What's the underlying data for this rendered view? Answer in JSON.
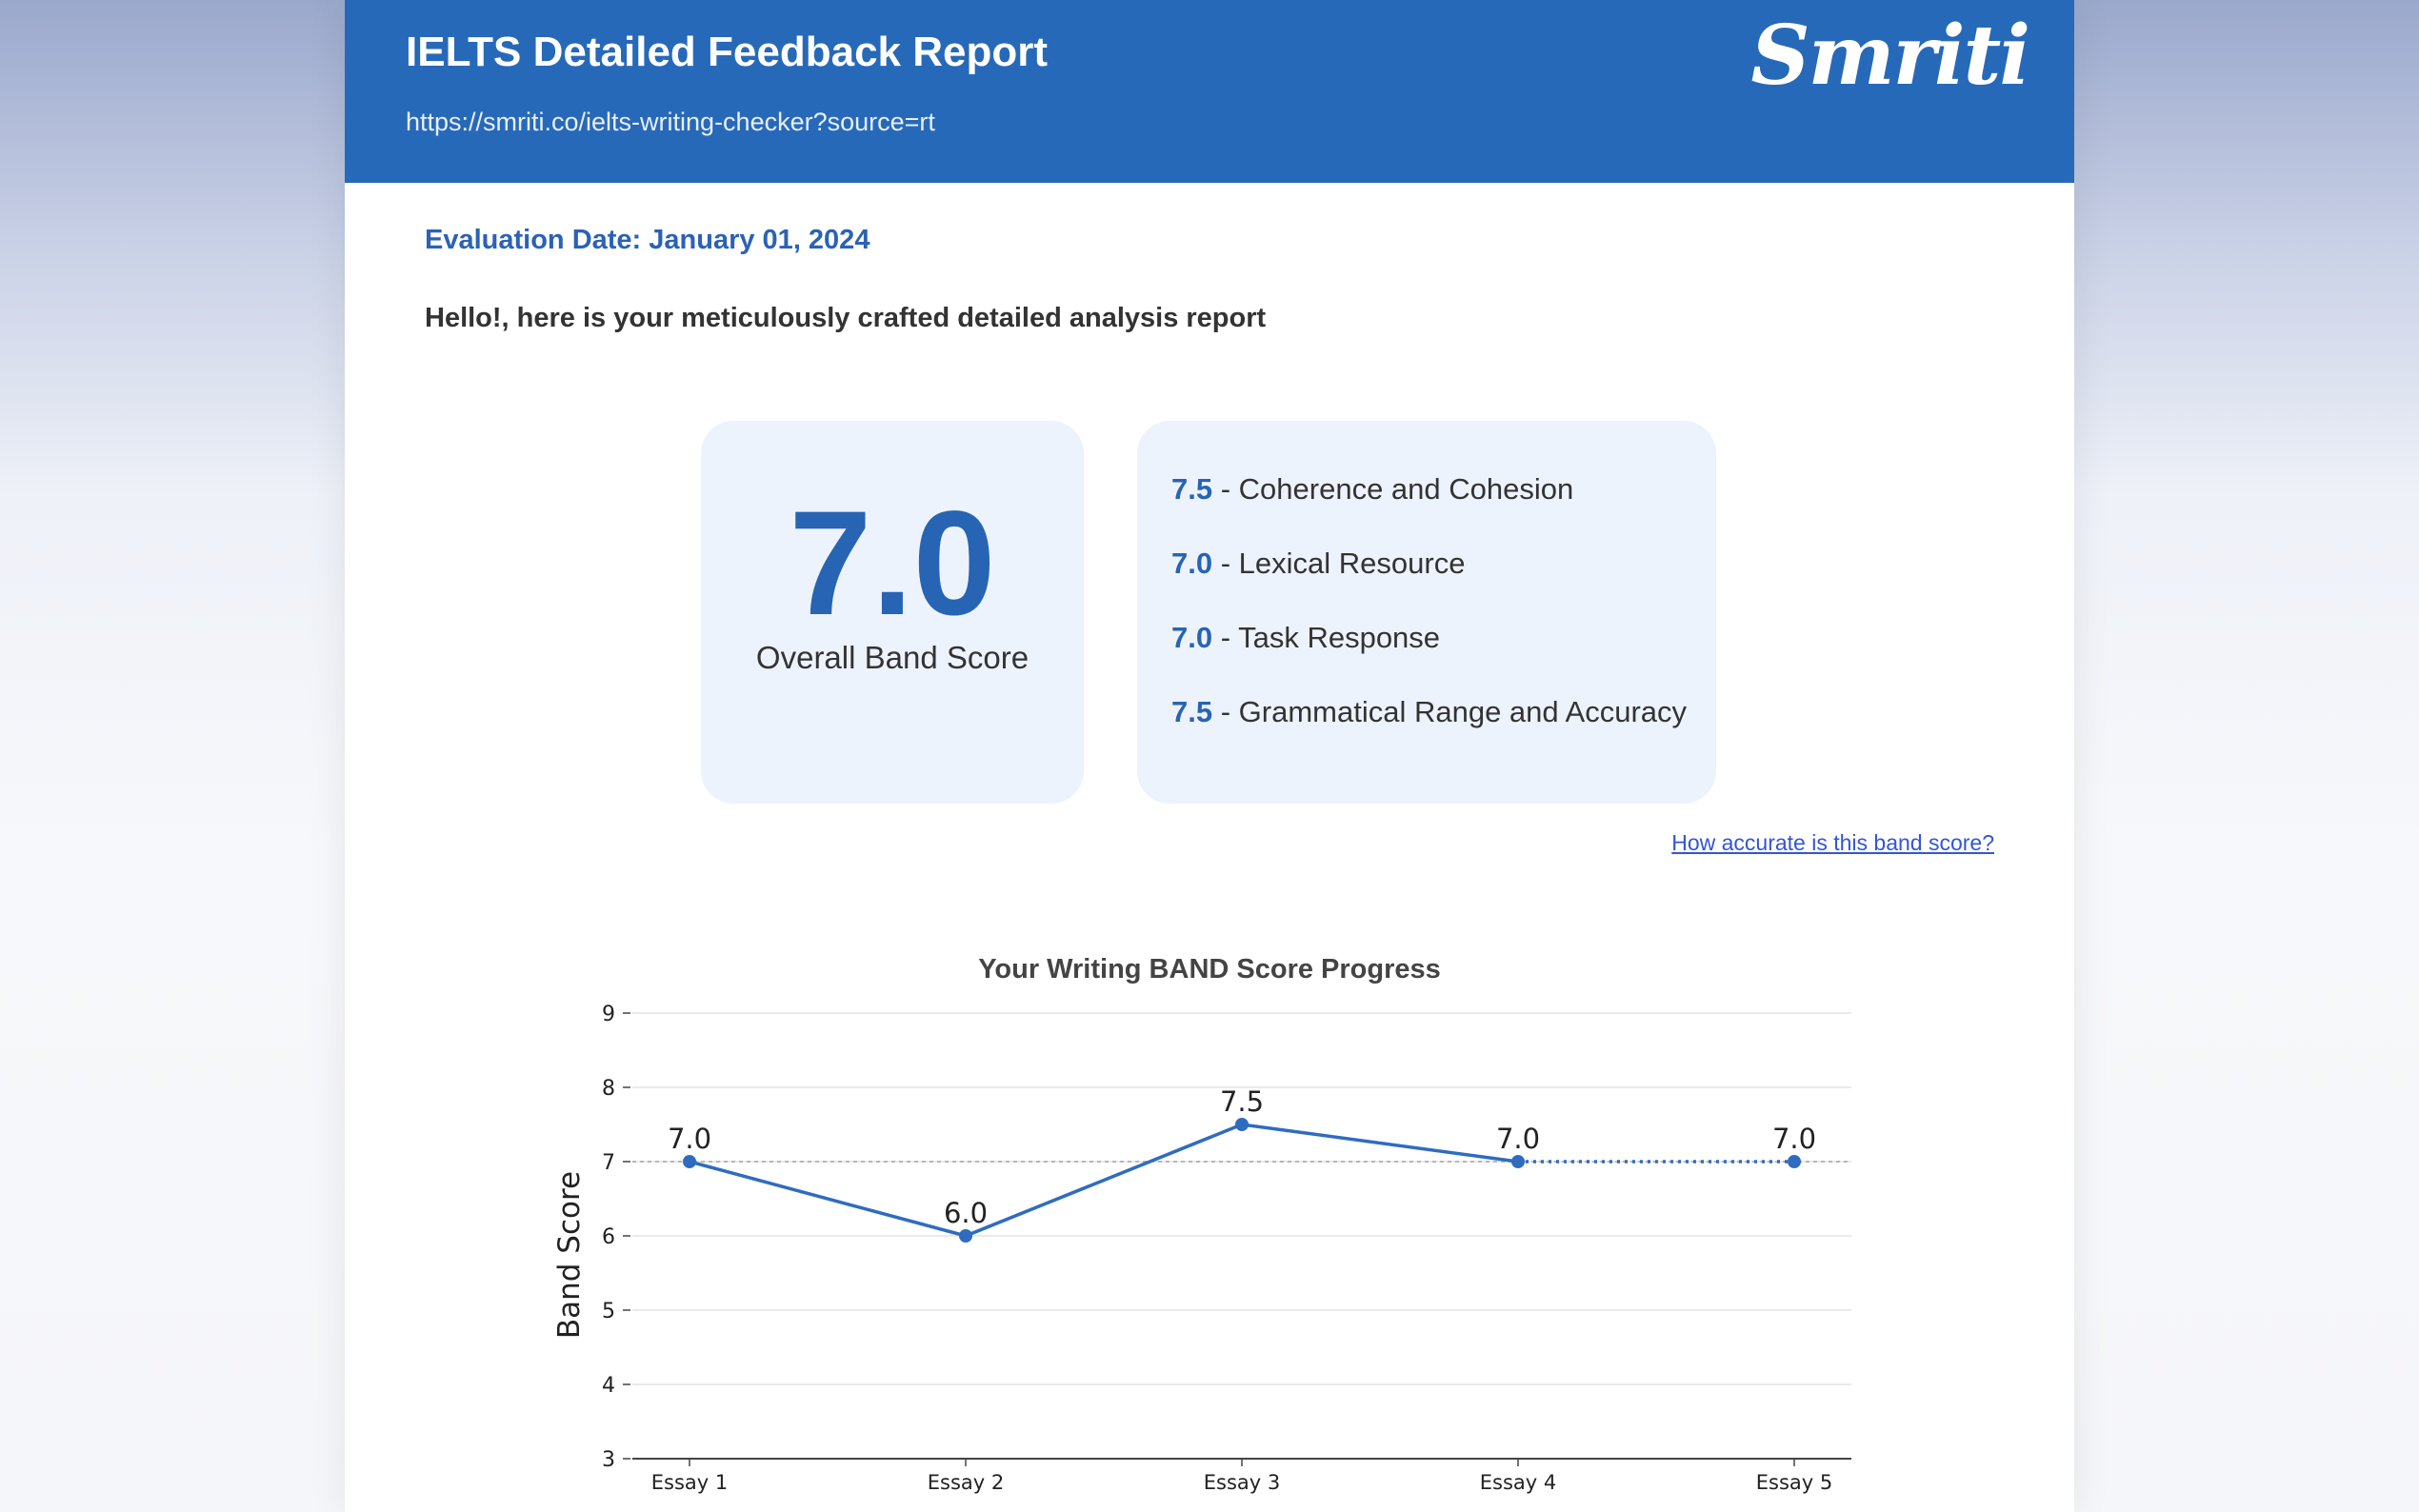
{
  "header": {
    "title": "IELTS Detailed Feedback Report",
    "url": "https://smriti.co/ielts-writing-checker?source=rt",
    "logo_text": "Smriti"
  },
  "evaluation_date": "Evaluation Date: January 01, 2024",
  "greeting": "Hello!, here is your meticulously crafted detailed analysis report",
  "overall": {
    "score": "7.0",
    "label": "Overall Band Score"
  },
  "criteria": [
    {
      "score": "7.5",
      "label": " - Coherence and Cohesion"
    },
    {
      "score": "7.0",
      "label": " - Lexical Resource"
    },
    {
      "score": "7.0",
      "label": " - Task Response"
    },
    {
      "score": "7.5",
      "label": " - Grammatical Range and Accuracy"
    }
  ],
  "accuracy_link": "How accurate is this band score?",
  "colors": {
    "header_bg": "#2769b9",
    "accent": "#2764b4",
    "card_bg": "#edf3fd",
    "link": "#3355d6",
    "line": "#2f6cc0"
  },
  "chart_data": {
    "type": "line",
    "title": "Your Writing BAND Score Progress",
    "xlabel": "",
    "ylabel": "Band Score",
    "categories": [
      "Essay 1",
      "Essay 2",
      "Essay 3",
      "Essay 4",
      "Essay 5"
    ],
    "series": [
      {
        "values": [
          7.0,
          6.0,
          7.5,
          7.0,
          7.0
        ],
        "labels": [
          "7.0",
          "6.0",
          "7.5",
          "7.0",
          "7.0"
        ]
      }
    ],
    "dotted_from_index": 3,
    "reference_line": 7,
    "ylim": [
      3,
      9
    ],
    "yticks": [
      3,
      4,
      5,
      6,
      7,
      8,
      9
    ],
    "grid": true
  }
}
